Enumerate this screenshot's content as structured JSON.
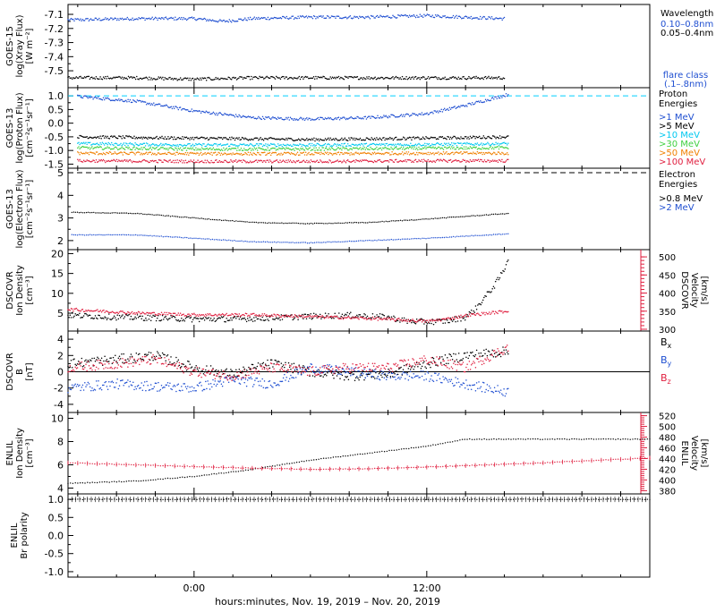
{
  "figure": {
    "xlabel": "hours:minutes, Nov. 19, 2019 – Nov. 20, 2019",
    "x_ticks": [
      "0:00",
      "12:00"
    ],
    "x_tick_hours": [
      0,
      12
    ],
    "x_range_hours": [
      -6.5,
      23.5
    ],
    "data_end_hour": 16.2
  },
  "colors": {
    "black": "#000000",
    "blue": "#1f4fd1",
    "cyan": "#00c8f0",
    "green": "#40d040",
    "yellow": "#e0c000",
    "orange": "#f08000",
    "red": "#e02040",
    "dashed_cyan": "#00d0ff"
  },
  "chart_data": [
    {
      "type": "scatter",
      "name": "goes15-xray",
      "ylabel": [
        "GOES-15",
        "log(Xray Flux)",
        "[W m⁻²]"
      ],
      "yticks": [
        "-7.1",
        "-7.2",
        "-7.3",
        "-7.4",
        "-7.5"
      ],
      "ytick_values": [
        -7.1,
        -7.2,
        -7.3,
        -7.4,
        -7.5
      ],
      "ylim": [
        -7.62,
        -7.03
      ],
      "legend_title": "Wavelength",
      "legend": [
        {
          "label": "0.10–0.8nm",
          "color": "#1f4fd1"
        },
        {
          "label": "0.05–0.4nm",
          "color": "#000000"
        }
      ],
      "note": [
        "flare class",
        "(.1–.8nm)"
      ],
      "series": [
        {
          "label": "0.10–0.8nm",
          "color": "#1f4fd1",
          "x": [
            -6.5,
            -3,
            0,
            1.5,
            3,
            6,
            9,
            12,
            14,
            16
          ],
          "y": [
            -7.14,
            -7.13,
            -7.13,
            -7.15,
            -7.13,
            -7.12,
            -7.12,
            -7.11,
            -7.12,
            -7.13
          ]
        },
        {
          "label": "0.05–0.4nm",
          "color": "#000000",
          "x": [
            -6.5,
            -3,
            0,
            3,
            6,
            9,
            12,
            14,
            16
          ],
          "y": [
            -7.55,
            -7.55,
            -7.56,
            -7.55,
            -7.55,
            -7.55,
            -7.55,
            -7.55,
            -7.55
          ]
        }
      ]
    },
    {
      "type": "scatter",
      "name": "goes13-proton",
      "ylabel": [
        "GOES-13",
        "log(Proton Flux)",
        "[cm⁻²s⁻¹sr⁻¹]"
      ],
      "yticks": [
        "1.0",
        "0.5",
        "0.0",
        "-0.5",
        "-1.0",
        "-1.5"
      ],
      "ytick_values": [
        1.0,
        0.5,
        0.0,
        -0.5,
        -1.0,
        -1.5
      ],
      "ylim": [
        -1.65,
        1.3
      ],
      "reference_line": 1.0,
      "legend_title": [
        "Proton",
        "Energies"
      ],
      "legend": [
        {
          "label": ">1 MeV",
          "color": "#1f4fd1"
        },
        {
          "label": ">5 MeV",
          "color": "#000000"
        },
        {
          "label": ">10 MeV",
          "color": "#00c8f0"
        },
        {
          "label": ">30 MeV",
          "color": "#40d040"
        },
        {
          "label": ">50 MeV",
          "color": "#f08000"
        },
        {
          "label": ">100 MeV",
          "color": "#e02040"
        }
      ],
      "series": [
        {
          "label": ">1 MeV",
          "color": "#1f4fd1",
          "x": [
            -6,
            -3,
            0,
            3,
            6,
            9,
            12,
            14,
            16.2
          ],
          "y": [
            0.98,
            0.8,
            0.45,
            0.2,
            0.15,
            0.2,
            0.35,
            0.65,
            1.05
          ]
        },
        {
          "label": ">5 MeV",
          "color": "#000000",
          "x": [
            -6,
            0,
            6,
            12,
            16.2
          ],
          "y": [
            -0.5,
            -0.55,
            -0.6,
            -0.55,
            -0.5
          ]
        },
        {
          "label": ">10 MeV",
          "color": "#00c8f0",
          "x": [
            -6,
            0,
            6,
            12,
            16.2
          ],
          "y": [
            -0.75,
            -0.8,
            -0.8,
            -0.78,
            -0.75
          ]
        },
        {
          "label": ">30 MeV",
          "color": "#40d040",
          "x": [
            -6,
            0,
            6,
            12,
            16.2
          ],
          "y": [
            -0.9,
            -0.95,
            -0.95,
            -0.92,
            -0.9
          ]
        },
        {
          "label": ">50 MeV",
          "color": "#f08000",
          "x": [
            -6,
            0,
            6,
            12,
            16.2
          ],
          "y": [
            -1.1,
            -1.12,
            -1.12,
            -1.1,
            -1.1
          ]
        },
        {
          "label": ">100 MeV",
          "color": "#e02040",
          "x": [
            -6,
            0,
            6,
            12,
            16.2
          ],
          "y": [
            -1.38,
            -1.4,
            -1.4,
            -1.38,
            -1.38
          ]
        }
      ]
    },
    {
      "type": "line",
      "name": "goes13-electron",
      "ylabel": [
        "GOES-13",
        "log(Electron Flux)",
        "[cm⁻²s⁻¹sr⁻¹]"
      ],
      "yticks": [
        "5",
        "4",
        "3",
        "2"
      ],
      "ytick_values": [
        5,
        4,
        3,
        2
      ],
      "ylim": [
        1.6,
        5.2
      ],
      "reference_line": 5.0,
      "legend_title": [
        "Electron",
        "Energies"
      ],
      "legend": [
        {
          "label": ">0.8 MeV",
          "color": "#000000"
        },
        {
          "label": ">2 MeV",
          "color": "#1f4fd1"
        }
      ],
      "series": [
        {
          "label": ">0.8 MeV",
          "color": "#000000",
          "x": [
            -6.3,
            -3,
            0,
            3,
            6,
            9,
            12,
            16.2
          ],
          "y": [
            3.25,
            3.2,
            3.0,
            2.8,
            2.75,
            2.8,
            2.95,
            3.2
          ]
        },
        {
          "label": ">2 MeV",
          "color": "#1f4fd1",
          "x": [
            -6.3,
            -3,
            0,
            3,
            6,
            9,
            12,
            16.2
          ],
          "y": [
            2.25,
            2.25,
            2.1,
            1.95,
            1.9,
            2.0,
            2.1,
            2.3
          ]
        }
      ]
    },
    {
      "type": "scatter",
      "name": "dscovr-density-velocity",
      "ylabel": [
        "DSCOVR",
        "Ion Density",
        "[cm⁻³]"
      ],
      "yticks": [
        "20",
        "15",
        "10",
        "5"
      ],
      "ytick_values": [
        20,
        15,
        10,
        5
      ],
      "ylim": [
        0.5,
        21
      ],
      "ylabel_right": [
        "DSCOVR",
        "Velocity",
        "[km/s]"
      ],
      "yticks_right": [
        "500",
        "450",
        "400",
        "350",
        "300"
      ],
      "ytick_values_right": [
        500,
        450,
        400,
        350,
        300
      ],
      "ylim_right": [
        295,
        520
      ],
      "series": [
        {
          "label": "density",
          "color": "#000000",
          "axis": "left",
          "x": [
            -6.5,
            -4,
            -2,
            0,
            2,
            4,
            6,
            8,
            10,
            11,
            12,
            13,
            14,
            14.5,
            15,
            15.5,
            16,
            16.2
          ],
          "y": [
            4.5,
            4.0,
            3.8,
            3.5,
            3.5,
            3.8,
            4.2,
            4.5,
            4.0,
            3.0,
            2.8,
            3.0,
            4.0,
            6.0,
            9.0,
            12.0,
            16.0,
            19.0
          ]
        },
        {
          "label": "velocity",
          "color": "#e02040",
          "axis": "right",
          "x": [
            -6.5,
            -3,
            0,
            3,
            6,
            9,
            12,
            13,
            14,
            16.2
          ],
          "y": [
            355,
            345,
            340,
            340,
            335,
            330,
            322,
            328,
            338,
            350
          ]
        }
      ]
    },
    {
      "type": "scatter",
      "name": "dscovr-b",
      "ylabel": [
        "DSCOVR",
        "B",
        "[nT]"
      ],
      "yticks": [
        "4",
        "2",
        "0",
        "-2",
        "-4"
      ],
      "ytick_values": [
        4,
        2,
        0,
        -2,
        -4
      ],
      "ylim": [
        -5.0,
        5.0
      ],
      "zero_line": true,
      "legend": [
        {
          "label": "Bx",
          "color": "#000000"
        },
        {
          "label": "By",
          "color": "#1f4fd1"
        },
        {
          "label": "Bz",
          "color": "#e02040"
        }
      ],
      "series": [
        {
          "label": "Bx",
          "color": "#000000",
          "x": [
            -6.5,
            -4,
            -2,
            0,
            2,
            4,
            6,
            8,
            10,
            12,
            14,
            16.2
          ],
          "y": [
            1.0,
            1.5,
            2.0,
            0.5,
            -0.3,
            1.0,
            0.0,
            -0.5,
            -0.3,
            1.0,
            2.0,
            2.5
          ]
        },
        {
          "label": "By",
          "color": "#1f4fd1",
          "x": [
            -6.5,
            -4,
            -2,
            0,
            2,
            4,
            6,
            8,
            10,
            12,
            14,
            16.2
          ],
          "y": [
            -2.0,
            -1.5,
            -1.8,
            -2.0,
            -1.0,
            -1.5,
            0.5,
            0.0,
            -0.5,
            -0.5,
            -1.5,
            -2.5
          ]
        },
        {
          "label": "Bz",
          "color": "#e02040",
          "x": [
            -6.5,
            -4,
            -2,
            0,
            2,
            4,
            6,
            8,
            10,
            12,
            14,
            16.2
          ],
          "y": [
            0.5,
            1.0,
            1.5,
            0.0,
            -0.5,
            0.5,
            0.0,
            0.5,
            0.5,
            1.5,
            0.5,
            3.0
          ]
        }
      ]
    },
    {
      "type": "line",
      "name": "enlil-density-velocity",
      "ylabel": [
        "ENLIL",
        "Ion Density",
        "[cm⁻³]"
      ],
      "yticks": [
        "10",
        "8",
        "6",
        "4"
      ],
      "ytick_values": [
        10,
        8,
        6,
        4
      ],
      "ylim": [
        3.5,
        10.5
      ],
      "ylabel_right": [
        "ENLIL",
        "Velocity",
        "[km/s]"
      ],
      "yticks_right": [
        "520",
        "500",
        "480",
        "460",
        "440",
        "420",
        "400",
        "380"
      ],
      "ytick_values_right": [
        520,
        500,
        480,
        460,
        440,
        420,
        400,
        380
      ],
      "ylim_right": [
        374,
        526
      ],
      "series": [
        {
          "label": "density",
          "color": "#000000",
          "axis": "left",
          "x": [
            -6.5,
            -3,
            0,
            3,
            6,
            9,
            12,
            14,
            16,
            20,
            23.5
          ],
          "y": [
            4.4,
            4.6,
            5.0,
            5.6,
            6.4,
            7.0,
            7.6,
            8.2,
            8.2,
            8.2,
            8.2
          ]
        },
        {
          "label": "velocity",
          "color": "#e02040",
          "axis": "right",
          "x": [
            -6.5,
            -3,
            0,
            3,
            6,
            9,
            12,
            15,
            18,
            21,
            23.5
          ],
          "y": [
            432,
            428,
            425,
            422,
            420,
            421,
            424,
            428,
            432,
            437,
            441
          ]
        }
      ]
    },
    {
      "type": "line",
      "name": "enlil-polarity",
      "ylabel": [
        "ENLIL",
        "Br polarity"
      ],
      "yticks": [
        "1.0",
        "0.5",
        "0.0",
        "-0.5",
        "-1.0"
      ],
      "ytick_values": [
        1.0,
        0.5,
        0.0,
        -0.5,
        -1.0
      ],
      "ylim": [
        -1.15,
        1.15
      ],
      "series": [
        {
          "label": "polarity",
          "color": "#000000",
          "x": [
            -6.5,
            23.5
          ],
          "y": [
            1.0,
            1.0
          ]
        }
      ]
    }
  ]
}
